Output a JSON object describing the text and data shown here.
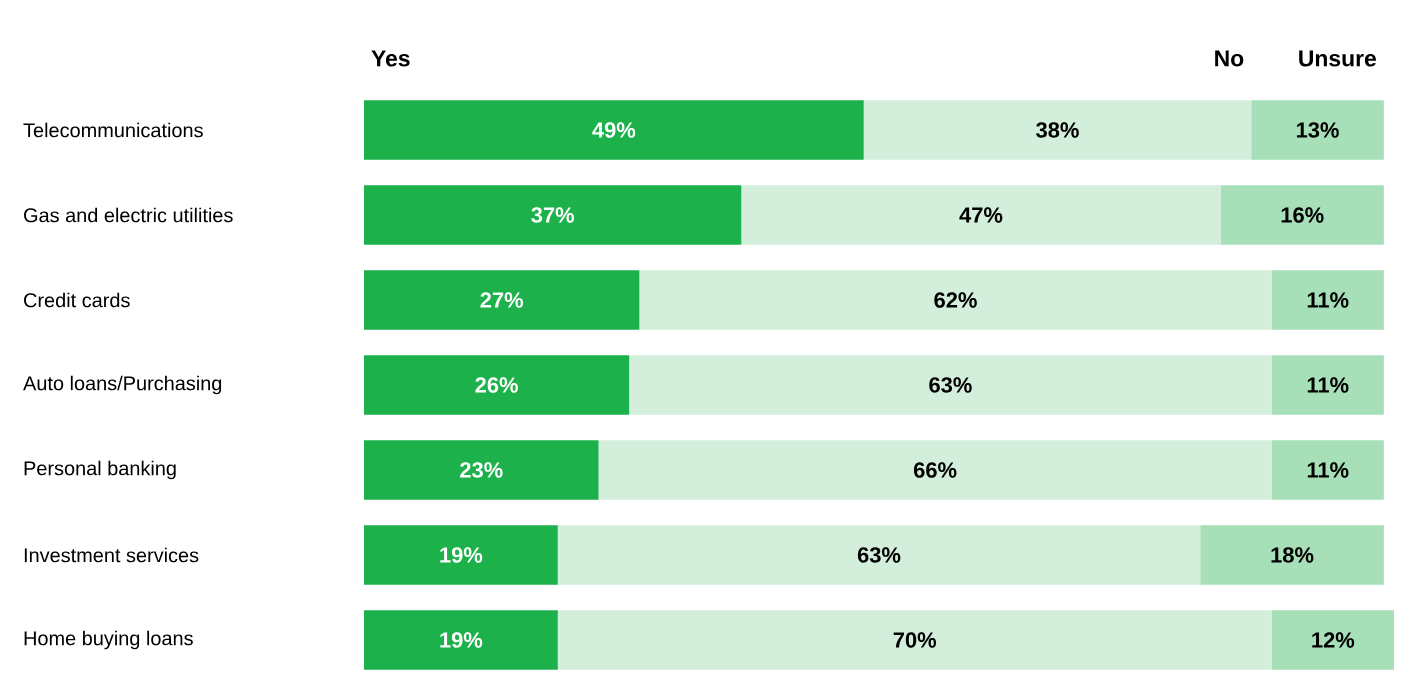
{
  "chart_data": {
    "type": "bar",
    "orientation": "horizontal",
    "stacked": true,
    "categories": [
      "Telecommunications",
      "Gas and electric utilities",
      "Credit cards",
      "Auto loans/Purchasing",
      "Personal banking",
      "Investment services",
      "Home buying loans"
    ],
    "series": [
      {
        "name": "Yes",
        "color": "#1db14b",
        "values": [
          49,
          37,
          27,
          26,
          23,
          19,
          19
        ],
        "value_labels": [
          "49%",
          "37%",
          "27%",
          "26%",
          "23%",
          "19%",
          "19%"
        ]
      },
      {
        "name": "No",
        "color": "#d4eedc",
        "values": [
          38,
          47,
          62,
          63,
          66,
          63,
          70
        ],
        "value_labels": [
          "38%",
          "47%",
          "62%",
          "63%",
          "66%",
          "63%",
          "70%"
        ]
      },
      {
        "name": "Unsure",
        "color": "#a6dfb8",
        "values": [
          13,
          16,
          11,
          11,
          11,
          18,
          12
        ],
        "value_labels": [
          "13%",
          "16%",
          "11%",
          "11%",
          "11%",
          "18%",
          "12%"
        ]
      }
    ]
  }
}
